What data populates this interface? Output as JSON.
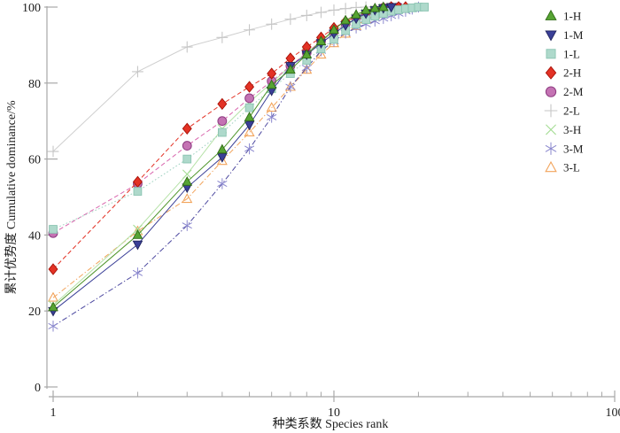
{
  "figure": {
    "background": "#ffffff",
    "axis_color": "#a8a8a8",
    "text_color": "#1c1c1c"
  },
  "chart_data": {
    "type": "line",
    "title": "",
    "xlabel": "种类系数 Species rank",
    "ylabel": "累计优势度 Cumulative dominance/%",
    "x_scale": "log10",
    "xlim": [
      1,
      100
    ],
    "ylim": [
      0,
      100
    ],
    "x_major_ticks": [
      1,
      10,
      100
    ],
    "x_minor_ticks": [
      2,
      3,
      4,
      5,
      6,
      7,
      8,
      9,
      20,
      30,
      40,
      50,
      60,
      70,
      80,
      90
    ],
    "y_major_ticks": [
      0,
      20,
      40,
      60,
      80,
      100
    ],
    "grid": false,
    "legend_position": "upper-right",
    "x_meaning": "species rank (1..N per series)",
    "series": [
      {
        "name": "1-H",
        "marker": "triangle-up",
        "fill": "#57a434",
        "edge": "#2f6b14",
        "line_color": "#4c9428",
        "line_style": "solid",
        "values": [
          21,
          40,
          54,
          62.5,
          71,
          79.5,
          83.5,
          87.5,
          91,
          94,
          96.5,
          98,
          99.2,
          99.7,
          100
        ]
      },
      {
        "name": "1-M",
        "marker": "triangle-down",
        "fill": "#3a3f97",
        "edge": "#22265f",
        "line_color": "#3a3f97",
        "line_style": "solid",
        "values": [
          20,
          37.5,
          52.5,
          60.5,
          69,
          78,
          84.5,
          87.5,
          90.5,
          93,
          95.2,
          97,
          98.3,
          99.2,
          99.7,
          100
        ]
      },
      {
        "name": "1-L",
        "marker": "square",
        "fill": "#aed9cb",
        "edge": "#8ac4b1",
        "line_color": "#9fd2c0",
        "line_style": "dotted",
        "values": [
          41.5,
          51.5,
          60,
          67,
          73.5,
          78.5,
          82.5,
          86,
          89,
          91.5,
          93.8,
          95.5,
          96.7,
          97.6,
          98.3,
          98.9,
          99.3,
          99.6,
          99.8,
          100,
          100
        ]
      },
      {
        "name": "2-H",
        "marker": "diamond",
        "fill": "#e33225",
        "edge": "#a81208",
        "line_color": "#e33225",
        "line_style": "dashed",
        "values": [
          31,
          54,
          68,
          74.5,
          79,
          82.5,
          86.5,
          89.5,
          92,
          94.5,
          96.2,
          97.5,
          98.6,
          99.3,
          99.8,
          100,
          100,
          100
        ]
      },
      {
        "name": "2-M",
        "marker": "circle",
        "fill": "#c473b3",
        "edge": "#8e3c82",
        "line_color": "#d967ae",
        "line_style": "dashed",
        "values": [
          40.5,
          53.5,
          63.5,
          70,
          76,
          80.5,
          84.5,
          88,
          91,
          93.5,
          95.5,
          97,
          98.3,
          99.2,
          99.8,
          100,
          100
        ]
      },
      {
        "name": "2-L",
        "marker": "plus",
        "fill": "#c6c6c6",
        "edge": "#c6c6c6",
        "line_color": "#cfcfcf",
        "line_style": "solid",
        "values": [
          62,
          83,
          89.5,
          92,
          94,
          95.5,
          96.8,
          97.8,
          98.6,
          99.2,
          99.6,
          99.9,
          100
        ]
      },
      {
        "name": "3-H",
        "marker": "x-cross",
        "fill": "#a6dd96",
        "edge": "#a6dd96",
        "line_color": "#b6e2a8",
        "line_style": "solid",
        "values": [
          21.5,
          41.5,
          56,
          68,
          75,
          80,
          84.5,
          88,
          91,
          93.5,
          95.5,
          97.2,
          98.4,
          99.3,
          99.8,
          100
        ]
      },
      {
        "name": "3-M",
        "marker": "asterisk",
        "fill": "#8a87ce",
        "edge": "#8a87ce",
        "line_color": "#4d49a0",
        "line_style": "dashdot",
        "values": [
          16,
          30,
          42.5,
          53.5,
          62.7,
          71,
          79,
          84,
          88.5,
          91,
          93.2,
          94.5,
          95.5,
          96.3,
          97,
          97.7,
          98.3,
          98.9,
          99.5,
          100
        ]
      },
      {
        "name": "3-L",
        "marker": "triangle-up-open",
        "fill": "none",
        "edge": "#f2a45c",
        "line_color": "#f2a45c",
        "line_style": "dashdot",
        "values": [
          23.5,
          41,
          49.5,
          59.5,
          67,
          73.5,
          79,
          83.5,
          87.5,
          90.5,
          93,
          95,
          96.8,
          98,
          99,
          99.5,
          100
        ]
      }
    ]
  },
  "legend": {
    "items": [
      "1-H",
      "1-M",
      "1-L",
      "2-H",
      "2-M",
      "2-L",
      "3-H",
      "3-M",
      "3-L"
    ]
  }
}
